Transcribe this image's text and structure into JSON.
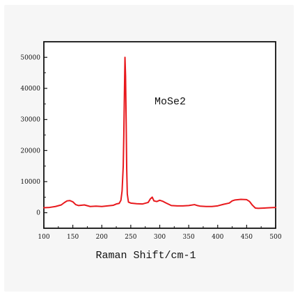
{
  "chart_data": {
    "type": "line",
    "title": "",
    "xlabel": "Raman Shift/cm-1",
    "ylabel": "",
    "xlim": [
      100,
      500
    ],
    "ylim": [
      -5000,
      55000
    ],
    "xticks": [
      100,
      150,
      200,
      250,
      300,
      350,
      400,
      450,
      500
    ],
    "yticks": [
      0,
      10000,
      20000,
      30000,
      40000,
      50000
    ],
    "grid": false,
    "annotation": "MoSe2",
    "line_color": "#e8181c",
    "series": [
      {
        "x": [
          100,
          110,
          120,
          130,
          135,
          140,
          145,
          150,
          155,
          160,
          170,
          180,
          190,
          200,
          210,
          220,
          225,
          230,
          233,
          235,
          237,
          238,
          239,
          240,
          241,
          242,
          243,
          244,
          246,
          250,
          260,
          270,
          280,
          284,
          287,
          290,
          295,
          300,
          305,
          310,
          320,
          330,
          340,
          350,
          360,
          365,
          370,
          380,
          390,
          400,
          410,
          420,
          425,
          430,
          440,
          450,
          455,
          460,
          465,
          470,
          480,
          490,
          500
        ],
        "y": [
          1600,
          1700,
          2000,
          2500,
          3200,
          3800,
          3900,
          3500,
          2600,
          2300,
          2500,
          2000,
          2100,
          2000,
          2200,
          2400,
          2800,
          3000,
          4000,
          7000,
          15000,
          25000,
          38000,
          50000,
          44000,
          30000,
          14000,
          6000,
          3400,
          3100,
          2900,
          2800,
          3300,
          4500,
          5000,
          3800,
          3600,
          4000,
          3700,
          3200,
          2300,
          2200,
          2200,
          2300,
          2600,
          2300,
          2100,
          2000,
          2000,
          2200,
          2700,
          3100,
          3800,
          4100,
          4300,
          4200,
          3600,
          2400,
          1500,
          1400,
          1500,
          1600,
          1700
        ]
      }
    ]
  }
}
